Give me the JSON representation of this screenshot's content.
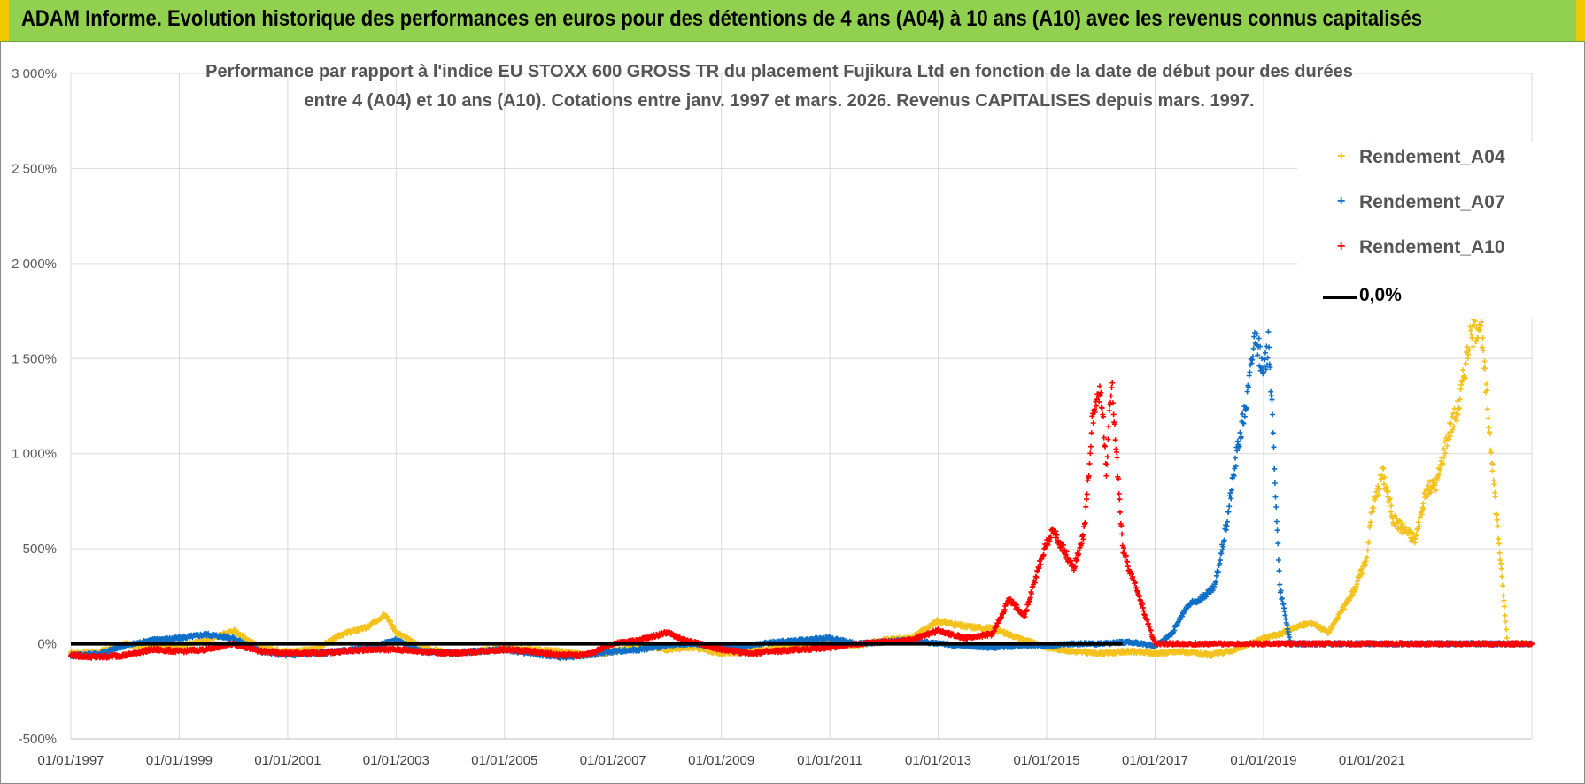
{
  "banner": {
    "title": "ADAM Informe. Evolution historique des performances en euros pour des détentions de 4 ans (A04) à 10 ans (A10) avec les revenus connus capitalisés",
    "accent_color": "#f2c800",
    "background_color": "#92d050"
  },
  "chart_data": {
    "type": "scatter",
    "title_line1": "Performance par rapport à l'indice EU STOXX 600 GROSS TR  du placement Fujikura Ltd en fonction de la date de début pour des durées",
    "title_line2": "entre 4 (A04) et 10 ans (A10).  Cotations entre janv. 1997 et mars. 2026.  Revenus CAPITALISES depuis mars. 1997.",
    "xlabel": "",
    "ylabel": "",
    "x_range": [
      1997.0,
      2023.95
    ],
    "ylim": [
      -500,
      3000
    ],
    "y_ticks": [
      -500,
      0,
      500,
      1000,
      1500,
      2000,
      2500,
      3000
    ],
    "y_tick_labels": [
      "-500%",
      "0%",
      "500%",
      "1 000%",
      "1 500%",
      "2 000%",
      "2 500%",
      "3 000%"
    ],
    "x_ticks": [
      1997,
      1999,
      2001,
      2003,
      2005,
      2007,
      2009,
      2011,
      2013,
      2015,
      2017,
      2019,
      2021
    ],
    "x_tick_labels": [
      "01/01/1997",
      "01/01/1999",
      "01/01/2001",
      "01/01/2003",
      "01/01/2005",
      "01/01/2007",
      "01/01/2009",
      "01/01/2011",
      "01/01/2013",
      "01/01/2015",
      "01/01/2017",
      "01/01/2019",
      "01/01/2021"
    ],
    "grid": true,
    "legend_position": "top-right",
    "series": [
      {
        "name": "Rendement_A04",
        "color": "#f4c21c",
        "marker": "+",
        "x": [
          1997.0,
          1997.5,
          1998.0,
          1998.5,
          1999.0,
          1999.5,
          2000.0,
          2000.5,
          2001.0,
          2001.5,
          2002.0,
          2002.5,
          2002.8,
          2003.0,
          2003.5,
          2004.0,
          2004.5,
          2005.0,
          2005.5,
          2006.0,
          2006.5,
          2007.0,
          2007.5,
          2008.0,
          2008.5,
          2009.0,
          2009.5,
          2010.0,
          2010.5,
          2011.0,
          2011.5,
          2012.0,
          2012.5,
          2013.0,
          2013.5,
          2014.0,
          2014.5,
          2015.0,
          2015.5,
          2016.0,
          2016.5,
          2017.0,
          2017.5,
          2018.0,
          2018.5,
          2019.0,
          2019.3,
          2019.6,
          2019.9,
          2020.2,
          2020.5,
          2020.7,
          2020.9,
          2021.0,
          2021.2,
          2021.4,
          2021.6,
          2021.8,
          2022.0,
          2022.2,
          2022.4,
          2022.6,
          2022.8,
          2023.0,
          2023.5,
          2023.95
        ],
        "y": [
          -50,
          -45,
          0,
          -20,
          -10,
          20,
          70,
          -20,
          -40,
          -30,
          50,
          90,
          160,
          60,
          -20,
          -50,
          -40,
          -20,
          -30,
          -40,
          -60,
          -40,
          -10,
          -30,
          -20,
          -50,
          -40,
          -20,
          -10,
          10,
          -10,
          20,
          30,
          120,
          90,
          80,
          30,
          -20,
          -40,
          -50,
          -40,
          -50,
          -40,
          -60,
          -30,
          30,
          50,
          90,
          110,
          60,
          200,
          300,
          450,
          700,
          900,
          650,
          600,
          550,
          800,
          850,
          1100,
          1250,
          1600,
          1700,
          0,
          0
        ]
      },
      {
        "name": "Rendement_A07",
        "color": "#0f6fc6",
        "marker": "+",
        "x": [
          1997.0,
          1997.5,
          1998.0,
          1998.5,
          1999.0,
          1999.5,
          2000.0,
          2000.5,
          2001.0,
          2001.5,
          2002.0,
          2002.5,
          2003.0,
          2003.5,
          2004.0,
          2004.5,
          2005.0,
          2005.5,
          2006.0,
          2006.5,
          2007.0,
          2007.5,
          2008.0,
          2008.5,
          2009.0,
          2009.5,
          2010.0,
          2010.5,
          2011.0,
          2011.5,
          2012.0,
          2012.5,
          2013.0,
          2013.5,
          2014.0,
          2014.5,
          2015.0,
          2015.5,
          2016.0,
          2016.5,
          2017.0,
          2017.3,
          2017.6,
          2017.9,
          2018.1,
          2018.3,
          2018.5,
          2018.7,
          2018.85,
          2019.0,
          2019.1,
          2019.3,
          2019.5,
          2020.0,
          2021.0,
          2022.0,
          2023.0,
          2023.95
        ],
        "y": [
          -60,
          -55,
          -10,
          20,
          30,
          50,
          30,
          -40,
          -60,
          -50,
          -40,
          -20,
          20,
          -40,
          -50,
          -40,
          -30,
          -50,
          -70,
          -60,
          -40,
          -30,
          -10,
          0,
          -20,
          -10,
          10,
          20,
          30,
          0,
          10,
          20,
          0,
          -10,
          -20,
          -10,
          -10,
          0,
          0,
          10,
          -10,
          50,
          200,
          250,
          300,
          600,
          1000,
          1300,
          1650,
          1400,
          1600,
          300,
          0,
          0,
          0,
          0,
          0,
          0
        ]
      },
      {
        "name": "Rendement_A10",
        "color": "#ff0000",
        "marker": "+",
        "x": [
          1997.0,
          1997.5,
          1998.0,
          1998.5,
          1999.0,
          1999.5,
          2000.0,
          2000.5,
          2001.0,
          2001.5,
          2002.0,
          2002.5,
          2003.0,
          2003.5,
          2004.0,
          2004.5,
          2005.0,
          2005.5,
          2006.0,
          2006.5,
          2007.0,
          2007.5,
          2008.0,
          2008.3,
          2008.6,
          2009.0,
          2009.5,
          2010.0,
          2010.5,
          2011.0,
          2011.5,
          2012.0,
          2012.5,
          2013.0,
          2013.5,
          2014.0,
          2014.3,
          2014.6,
          2014.9,
          2015.1,
          2015.3,
          2015.5,
          2015.7,
          2015.85,
          2016.0,
          2016.1,
          2016.2,
          2016.4,
          2017.0,
          2018.0,
          2019.0,
          2020.0,
          2021.0,
          2022.0,
          2023.0,
          2023.95
        ],
        "y": [
          -60,
          -70,
          -60,
          -30,
          -40,
          -30,
          0,
          -40,
          -50,
          -50,
          -40,
          -30,
          -30,
          -40,
          -50,
          -40,
          -30,
          -40,
          -60,
          -60,
          0,
          20,
          60,
          20,
          0,
          -30,
          -50,
          -40,
          -30,
          -20,
          0,
          10,
          20,
          70,
          30,
          50,
          230,
          150,
          450,
          600,
          500,
          400,
          600,
          1200,
          1350,
          900,
          1400,
          500,
          0,
          0,
          0,
          0,
          0,
          0,
          0,
          0
        ]
      },
      {
        "name": "0,0%",
        "color": "#000000",
        "marker": "line",
        "x": [
          1997.0,
          2016.4
        ],
        "y": [
          0,
          0
        ]
      }
    ]
  }
}
